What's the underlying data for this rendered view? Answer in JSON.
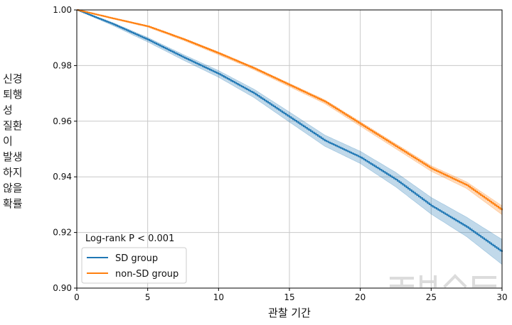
{
  "chart_data": {
    "type": "line",
    "xlabel": "관찰 기간",
    "ylabel_lines": [
      "신경",
      "퇴행성",
      "질환이",
      "발생",
      "하지",
      "않을",
      "확률"
    ],
    "xlim": [
      0,
      30
    ],
    "ylim": [
      0.9,
      1.0
    ],
    "xticks": [
      "0",
      "5",
      "10",
      "15",
      "20",
      "25",
      "30"
    ],
    "yticks": [
      "0.90",
      "0.92",
      "0.94",
      "0.96",
      "0.98",
      "1.00"
    ],
    "grid": true,
    "annotation": "Log-rank P < 0.001",
    "legend_placement": "lower-left",
    "series": [
      {
        "name": "SD group",
        "color": "#1f77b4",
        "x": [
          0,
          2.5,
          5,
          7.5,
          10,
          12.5,
          15,
          17.5,
          20,
          22.5,
          25,
          27.5,
          30
        ],
        "y": [
          1.0,
          0.995,
          0.9893,
          0.983,
          0.977,
          0.97,
          0.9615,
          0.953,
          0.947,
          0.939,
          0.9296,
          0.922,
          0.913
        ],
        "ci_halfwidth": [
          0,
          0.0005,
          0.0008,
          0.001,
          0.0012,
          0.0015,
          0.0018,
          0.002,
          0.0022,
          0.0026,
          0.003,
          0.0035,
          0.0045
        ]
      },
      {
        "name": "non-SD group",
        "color": "#ff7f0e",
        "x": [
          0,
          2.5,
          5,
          7.5,
          10,
          12.5,
          15,
          17.5,
          20,
          22.5,
          25,
          27.5,
          30
        ],
        "y": [
          1.0,
          0.997,
          0.9941,
          0.9895,
          0.9844,
          0.979,
          0.973,
          0.967,
          0.959,
          0.951,
          0.943,
          0.937,
          0.928
        ],
        "ci_halfwidth": [
          0,
          0.0002,
          0.0003,
          0.0004,
          0.0005,
          0.0005,
          0.0006,
          0.0007,
          0.0008,
          0.0009,
          0.001,
          0.0012,
          0.0016
        ]
      }
    ]
  },
  "watermark": "뉴시스"
}
